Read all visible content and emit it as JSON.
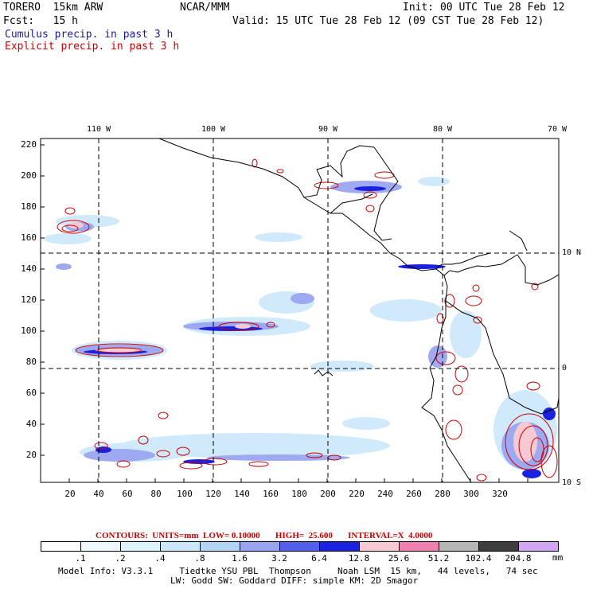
{
  "header": {
    "model": "TORERO  15km ARW",
    "center": "NCAR/MMM",
    "init": "Init: 00 UTC Tue 28 Feb 12",
    "fcst": "Fcst:   15 h",
    "valid": "Valid: 15 UTC Tue 28 Feb 12 (09 CST Tue 28 Feb 12)",
    "cumulus": "Cumulus precip. in past 3 h",
    "explicit": "Explicit precip. in past 3 h"
  },
  "axes": {
    "bottom": [
      "20",
      "40",
      "60",
      "80",
      "100",
      "120",
      "140",
      "160",
      "180",
      "200",
      "220",
      "240",
      "260",
      "280",
      "300",
      "320"
    ],
    "left": [
      "220",
      "200",
      "180",
      "160",
      "140",
      "120",
      "100",
      "80",
      "60",
      "40",
      "20"
    ],
    "top": [
      "110 W",
      "100 W",
      "90 W",
      "80 W",
      "70 W"
    ],
    "right": [
      "10 N",
      "0",
      "10 S"
    ]
  },
  "contour_info": "CONTOURS:  UNITS=mm  LOW= 0.10000       HIGH=  25.600       INTERVAL=X  4.0000",
  "colorbar": {
    "labels": [
      ".1",
      ".2",
      ".4",
      ".8",
      "1.6",
      "3.2",
      "6.4",
      "12.8",
      "25.6",
      "51.2",
      "102.4",
      "204.8"
    ],
    "unit": "mm",
    "colors": [
      "#ffffff",
      "#eef8fe",
      "#dff3fc",
      "#cbe8fb",
      "#b3d4f5",
      "#9aa5f0",
      "#5560ea",
      "#1a22e0",
      "#f7c9d3",
      "#ee80b2",
      "#b5b5b5",
      "#3d3d3d",
      "#d1a6f2"
    ]
  },
  "footer": {
    "line1": "Model Info: V3.3.1     Tiedtke YSU PBL  Thompson     Noah LSM  15 km,   44 levels,   74 sec",
    "line2": "LW: Godd SW: Goddard DIFF: simple KM: 2D Smagor"
  }
}
